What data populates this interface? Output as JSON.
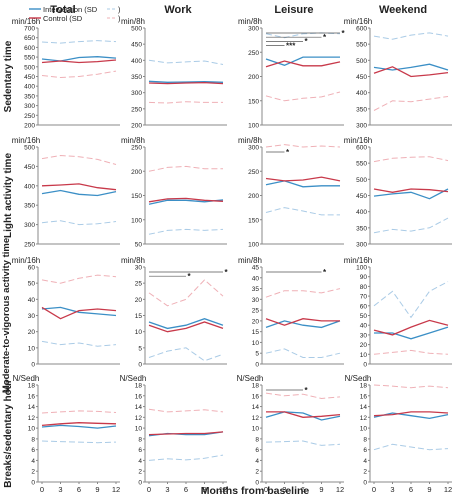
{
  "chart_data": {
    "type": "line",
    "columns": [
      "Total",
      "Work",
      "Leisure",
      "Weekend"
    ],
    "rows": [
      "Sedentary time",
      "Light activity time",
      "Moderate-to-vigorous activity time",
      "Breaks/sedentary hour"
    ],
    "x": [
      0,
      3,
      6,
      9,
      12
    ],
    "x_ticks": [
      "0",
      "3",
      "6",
      "9",
      "12"
    ],
    "xlabel": "Months from baseline",
    "legend": {
      "intervention_label": "Intervention (SD",
      "control_label": "Control (SD",
      "closing": ")",
      "placement": "top-left of first panel"
    },
    "colors": {
      "intervention": "#3b8fc6",
      "control": "#c8394a",
      "intervention_sd": "#aacbe6",
      "control_sd": "#efb0b6"
    },
    "panels": [
      [
        {
          "unit": "min/16h",
          "ylim": [
            200,
            700
          ],
          "yticks": [
            "200",
            "250",
            "300",
            "350",
            "400",
            "450",
            "500",
            "550",
            "600",
            "650",
            "700"
          ],
          "intervention": [
            540,
            530,
            548,
            552,
            545
          ],
          "control": [
            522,
            530,
            522,
            527,
            535
          ],
          "intervention_sd": [
            628,
            622,
            630,
            635,
            630
          ],
          "control_sd": [
            455,
            445,
            450,
            462,
            478
          ],
          "sig": []
        },
        {
          "unit": "min/8h",
          "ylim": [
            200,
            500
          ],
          "yticks": [
            "200",
            "250",
            "300",
            "350",
            "400",
            "450",
            "500"
          ],
          "intervention": [
            335,
            332,
            333,
            334,
            332
          ],
          "control": [
            330,
            328,
            330,
            331,
            328
          ],
          "intervention_sd": [
            400,
            392,
            395,
            398,
            387
          ],
          "control_sd": [
            270,
            268,
            272,
            270,
            270
          ],
          "sig": []
        },
        {
          "unit": "min/8h",
          "ylim": [
            100,
            300
          ],
          "yticks": [
            "100",
            "150",
            "200",
            "250",
            "300"
          ],
          "intervention": [
            236,
            223,
            240,
            240,
            240
          ],
          "control": [
            220,
            232,
            222,
            222,
            230
          ],
          "intervention_sd": [
            288,
            280,
            288,
            290,
            288
          ],
          "control_sd": [
            160,
            150,
            155,
            158,
            168
          ],
          "sig": [
            {
              "to": 4,
              "label": "*"
            },
            {
              "to": 3,
              "label": "*"
            },
            {
              "to": 2,
              "label": "*"
            },
            {
              "to": 1,
              "label": "***"
            }
          ]
        },
        {
          "unit": "min/16h",
          "ylim": [
            300,
            600
          ],
          "yticks": [
            "300",
            "350",
            "400",
            "450",
            "500",
            "550",
            "600"
          ],
          "intervention": [
            478,
            470,
            478,
            488,
            470
          ],
          "control": [
            460,
            480,
            450,
            455,
            462
          ],
          "intervention_sd": [
            575,
            565,
            578,
            585,
            575
          ],
          "control_sd": [
            345,
            375,
            372,
            380,
            388
          ],
          "sig": []
        }
      ],
      [
        {
          "unit": "min/16h",
          "ylim": [
            250,
            500
          ],
          "yticks": [
            "250",
            "300",
            "350",
            "400",
            "450",
            "500"
          ],
          "intervention": [
            380,
            388,
            378,
            375,
            385
          ],
          "control": [
            400,
            402,
            405,
            395,
            390
          ],
          "intervention_sd": [
            305,
            310,
            300,
            302,
            308
          ],
          "control_sd": [
            470,
            478,
            475,
            468,
            455
          ],
          "sig": []
        },
        {
          "unit": "min/8h",
          "ylim": [
            50,
            250
          ],
          "yticks": [
            "50",
            "100",
            "150",
            "200",
            "250"
          ],
          "intervention": [
            132,
            140,
            140,
            137,
            141
          ],
          "control": [
            137,
            143,
            144,
            140,
            138
          ],
          "intervention_sd": [
            70,
            78,
            80,
            78,
            80
          ],
          "control_sd": [
            200,
            208,
            210,
            205,
            205
          ],
          "sig": []
        },
        {
          "unit": "min/8h",
          "ylim": [
            100,
            300
          ],
          "yticks": [
            "100",
            "150",
            "200",
            "250",
            "300"
          ],
          "intervention": [
            222,
            230,
            218,
            220,
            220
          ],
          "control": [
            235,
            230,
            232,
            238,
            230
          ],
          "intervention_sd": [
            165,
            175,
            168,
            160,
            160
          ],
          "control_sd": [
            300,
            305,
            300,
            302,
            300
          ],
          "sig": [
            {
              "to": 1,
              "label": "*"
            }
          ]
        },
        {
          "unit": "min/16h",
          "ylim": [
            300,
            600
          ],
          "yticks": [
            "300",
            "350",
            "400",
            "450",
            "500",
            "550",
            "600"
          ],
          "intervention": [
            448,
            455,
            460,
            440,
            470
          ],
          "control": [
            470,
            460,
            470,
            468,
            462
          ],
          "intervention_sd": [
            335,
            345,
            340,
            350,
            380
          ],
          "control_sd": [
            555,
            565,
            568,
            570,
            558
          ],
          "sig": []
        }
      ],
      [
        {
          "unit": "min/16h",
          "ylim": [
            0,
            60
          ],
          "yticks": [
            "0",
            "10",
            "20",
            "30",
            "40",
            "50",
            "60"
          ],
          "intervention": [
            34,
            35,
            32,
            31,
            30
          ],
          "control": [
            35,
            28,
            33,
            34,
            33
          ],
          "intervention_sd": [
            14,
            12,
            13,
            11,
            12
          ],
          "control_sd": [
            52,
            50,
            53,
            55,
            54
          ],
          "sig": []
        },
        {
          "unit": "min/8h",
          "ylim": [
            0,
            30
          ],
          "yticks": [
            "0",
            "5",
            "10",
            "15",
            "20",
            "25",
            "30"
          ],
          "intervention": [
            13,
            11,
            12,
            14,
            12
          ],
          "control": [
            12,
            10,
            11,
            13,
            11
          ],
          "intervention_sd": [
            2,
            4,
            5,
            1,
            3
          ],
          "control_sd": [
            22,
            18,
            20,
            26,
            21
          ],
          "sig": [
            {
              "to": 4,
              "label": "*"
            },
            {
              "to": 2,
              "label": "*"
            }
          ]
        },
        {
          "unit": "min/8h",
          "ylim": [
            0,
            45
          ],
          "yticks": [
            "0",
            "5",
            "10",
            "15",
            "20",
            "25",
            "30",
            "35",
            "40",
            "45"
          ],
          "intervention": [
            17,
            20,
            18,
            17,
            20
          ],
          "control": [
            21,
            18,
            21,
            20,
            20
          ],
          "intervention_sd": [
            5,
            7,
            3,
            3,
            5
          ],
          "control_sd": [
            31,
            34,
            34,
            33,
            35
          ],
          "sig": [
            {
              "to": 3,
              "label": "*"
            }
          ]
        },
        {
          "unit": "min/16h",
          "ylim": [
            0,
            100
          ],
          "yticks": [
            "0",
            "10",
            "20",
            "30",
            "40",
            "50",
            "60",
            "70",
            "80",
            "90",
            "100"
          ],
          "intervention": [
            32,
            32,
            26,
            32,
            38
          ],
          "control": [
            35,
            30,
            38,
            45,
            40
          ],
          "intervention_sd": [
            60,
            75,
            48,
            75,
            85
          ],
          "control_sd": [
            10,
            12,
            14,
            11,
            10
          ],
          "sig": []
        }
      ],
      [
        {
          "unit": "N/Sedh",
          "ylim": [
            0,
            18
          ],
          "yticks": [
            "0",
            "2",
            "4",
            "6",
            "8",
            "10",
            "12",
            "14",
            "16",
            "18"
          ],
          "intervention": [
            10.2,
            10.5,
            10.3,
            10.0,
            10.4
          ],
          "control": [
            10.5,
            10.8,
            11.0,
            10.9,
            10.8
          ],
          "intervention_sd": [
            7.6,
            7.5,
            7.4,
            7.3,
            7.4
          ],
          "control_sd": [
            12.8,
            13.0,
            13.2,
            13.1,
            12.9
          ],
          "sig": []
        },
        {
          "unit": "N/Sedh",
          "ylim": [
            0,
            18
          ],
          "yticks": [
            "0",
            "2",
            "4",
            "6",
            "8",
            "10",
            "12",
            "14",
            "16",
            "18"
          ],
          "intervention": [
            8.6,
            9.0,
            8.8,
            8.8,
            9.3
          ],
          "control": [
            8.8,
            8.9,
            9.0,
            9.0,
            9.3
          ],
          "intervention_sd": [
            4.0,
            4.3,
            4.1,
            4.4,
            5.0
          ],
          "control_sd": [
            13.5,
            13.0,
            13.2,
            13.4,
            13.0
          ],
          "sig": []
        },
        {
          "unit": "N/Sedh",
          "ylim": [
            0,
            18
          ],
          "yticks": [
            "0",
            "2",
            "4",
            "6",
            "8",
            "10",
            "12",
            "14",
            "16",
            "18"
          ],
          "intervention": [
            12.0,
            13.0,
            12.8,
            11.5,
            12.2
          ],
          "control": [
            13.0,
            13.0,
            12.0,
            12.2,
            12.5
          ],
          "intervention_sd": [
            7.4,
            7.5,
            7.6,
            6.8,
            7.0
          ],
          "control_sd": [
            16.5,
            16.0,
            16.3,
            15.5,
            15.8
          ],
          "sig": [
            {
              "to": 2,
              "label": "*"
            }
          ]
        },
        {
          "unit": "N/Sedh",
          "ylim": [
            0,
            18
          ],
          "yticks": [
            "0",
            "2",
            "4",
            "6",
            "8",
            "10",
            "12",
            "14",
            "16",
            "18"
          ],
          "intervention": [
            12.0,
            12.8,
            12.3,
            11.8,
            12.5
          ],
          "control": [
            12.3,
            12.5,
            13.0,
            13.0,
            12.8
          ],
          "intervention_sd": [
            6.0,
            7.0,
            6.5,
            6.0,
            6.2
          ],
          "control_sd": [
            18.0,
            17.8,
            17.5,
            17.8,
            17.5
          ],
          "sig": []
        }
      ]
    ]
  }
}
